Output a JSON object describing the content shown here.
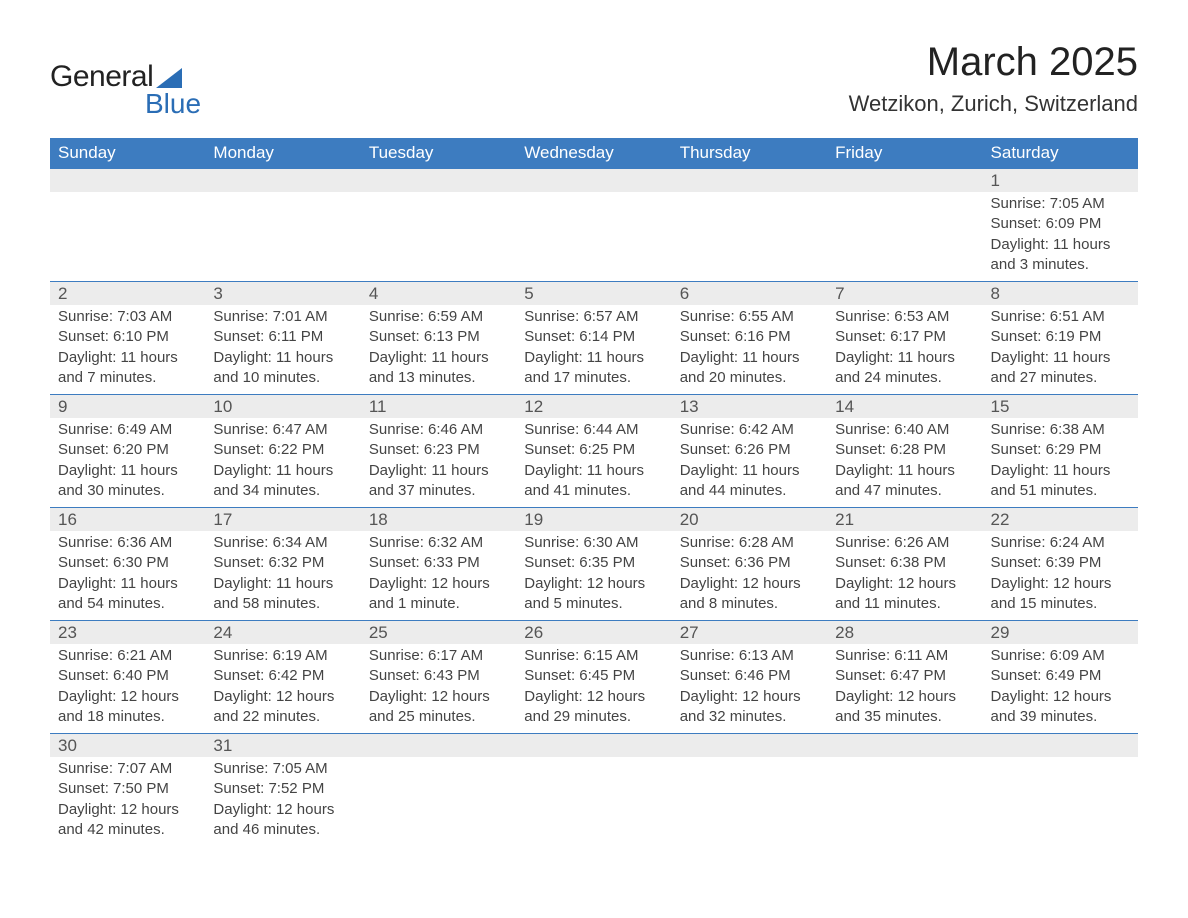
{
  "logo": {
    "text1": "General",
    "text2": "Blue"
  },
  "title": "March 2025",
  "subtitle": "Wetzikon, Zurich, Switzerland",
  "colors": {
    "header_bg": "#3d7cc0",
    "header_text": "#ffffff",
    "daynum_bg": "#ececec",
    "row_border": "#3d7cc0",
    "logo_accent": "#2a6db5",
    "body_text": "#444"
  },
  "weekdays": [
    "Sunday",
    "Monday",
    "Tuesday",
    "Wednesday",
    "Thursday",
    "Friday",
    "Saturday"
  ],
  "weeks": [
    [
      null,
      null,
      null,
      null,
      null,
      null,
      {
        "n": "1",
        "sr": "7:05 AM",
        "ss": "6:09 PM",
        "dl": "11 hours and 3 minutes."
      }
    ],
    [
      {
        "n": "2",
        "sr": "7:03 AM",
        "ss": "6:10 PM",
        "dl": "11 hours and 7 minutes."
      },
      {
        "n": "3",
        "sr": "7:01 AM",
        "ss": "6:11 PM",
        "dl": "11 hours and 10 minutes."
      },
      {
        "n": "4",
        "sr": "6:59 AM",
        "ss": "6:13 PM",
        "dl": "11 hours and 13 minutes."
      },
      {
        "n": "5",
        "sr": "6:57 AM",
        "ss": "6:14 PM",
        "dl": "11 hours and 17 minutes."
      },
      {
        "n": "6",
        "sr": "6:55 AM",
        "ss": "6:16 PM",
        "dl": "11 hours and 20 minutes."
      },
      {
        "n": "7",
        "sr": "6:53 AM",
        "ss": "6:17 PM",
        "dl": "11 hours and 24 minutes."
      },
      {
        "n": "8",
        "sr": "6:51 AM",
        "ss": "6:19 PM",
        "dl": "11 hours and 27 minutes."
      }
    ],
    [
      {
        "n": "9",
        "sr": "6:49 AM",
        "ss": "6:20 PM",
        "dl": "11 hours and 30 minutes."
      },
      {
        "n": "10",
        "sr": "6:47 AM",
        "ss": "6:22 PM",
        "dl": "11 hours and 34 minutes."
      },
      {
        "n": "11",
        "sr": "6:46 AM",
        "ss": "6:23 PM",
        "dl": "11 hours and 37 minutes."
      },
      {
        "n": "12",
        "sr": "6:44 AM",
        "ss": "6:25 PM",
        "dl": "11 hours and 41 minutes."
      },
      {
        "n": "13",
        "sr": "6:42 AM",
        "ss": "6:26 PM",
        "dl": "11 hours and 44 minutes."
      },
      {
        "n": "14",
        "sr": "6:40 AM",
        "ss": "6:28 PM",
        "dl": "11 hours and 47 minutes."
      },
      {
        "n": "15",
        "sr": "6:38 AM",
        "ss": "6:29 PM",
        "dl": "11 hours and 51 minutes."
      }
    ],
    [
      {
        "n": "16",
        "sr": "6:36 AM",
        "ss": "6:30 PM",
        "dl": "11 hours and 54 minutes."
      },
      {
        "n": "17",
        "sr": "6:34 AM",
        "ss": "6:32 PM",
        "dl": "11 hours and 58 minutes."
      },
      {
        "n": "18",
        "sr": "6:32 AM",
        "ss": "6:33 PM",
        "dl": "12 hours and 1 minute."
      },
      {
        "n": "19",
        "sr": "6:30 AM",
        "ss": "6:35 PM",
        "dl": "12 hours and 5 minutes."
      },
      {
        "n": "20",
        "sr": "6:28 AM",
        "ss": "6:36 PM",
        "dl": "12 hours and 8 minutes."
      },
      {
        "n": "21",
        "sr": "6:26 AM",
        "ss": "6:38 PM",
        "dl": "12 hours and 11 minutes."
      },
      {
        "n": "22",
        "sr": "6:24 AM",
        "ss": "6:39 PM",
        "dl": "12 hours and 15 minutes."
      }
    ],
    [
      {
        "n": "23",
        "sr": "6:21 AM",
        "ss": "6:40 PM",
        "dl": "12 hours and 18 minutes."
      },
      {
        "n": "24",
        "sr": "6:19 AM",
        "ss": "6:42 PM",
        "dl": "12 hours and 22 minutes."
      },
      {
        "n": "25",
        "sr": "6:17 AM",
        "ss": "6:43 PM",
        "dl": "12 hours and 25 minutes."
      },
      {
        "n": "26",
        "sr": "6:15 AM",
        "ss": "6:45 PM",
        "dl": "12 hours and 29 minutes."
      },
      {
        "n": "27",
        "sr": "6:13 AM",
        "ss": "6:46 PM",
        "dl": "12 hours and 32 minutes."
      },
      {
        "n": "28",
        "sr": "6:11 AM",
        "ss": "6:47 PM",
        "dl": "12 hours and 35 minutes."
      },
      {
        "n": "29",
        "sr": "6:09 AM",
        "ss": "6:49 PM",
        "dl": "12 hours and 39 minutes."
      }
    ],
    [
      {
        "n": "30",
        "sr": "7:07 AM",
        "ss": "7:50 PM",
        "dl": "12 hours and 42 minutes."
      },
      {
        "n": "31",
        "sr": "7:05 AM",
        "ss": "7:52 PM",
        "dl": "12 hours and 46 minutes."
      },
      null,
      null,
      null,
      null,
      null
    ]
  ],
  "labels": {
    "sunrise": "Sunrise: ",
    "sunset": "Sunset: ",
    "daylight": "Daylight: "
  }
}
